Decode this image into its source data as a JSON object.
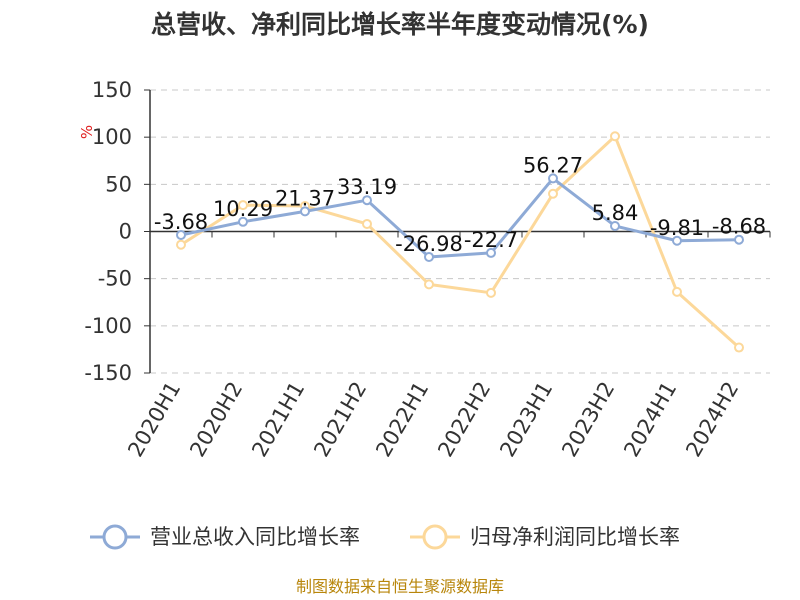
{
  "chart_data": {
    "type": "line",
    "title": "总营收、净利同比增长率半年度变动情况(%)",
    "unit": "%",
    "categories": [
      "2020H1",
      "2020H2",
      "2021H1",
      "2021H2",
      "2022H1",
      "2022H2",
      "2023H1",
      "2023H2",
      "2024H1",
      "2024H2"
    ],
    "ylim": [
      -150,
      150
    ],
    "yticks": [
      -150,
      -100,
      -50,
      0,
      50,
      100,
      150
    ],
    "grid": true,
    "legend_position": "bottom",
    "series": [
      {
        "name": "营业总收入同比增长率",
        "color": "#8eaad6",
        "values": [
          -3.68,
          10.29,
          21.37,
          33.19,
          -26.98,
          -22.7,
          56.27,
          5.84,
          -9.81,
          -8.68
        ],
        "labels": [
          "-3.68",
          "10.29",
          "21.37",
          "33.19",
          "-26.98",
          "-22.7",
          "56.27",
          "5.84",
          "-9.81",
          "-8.68"
        ]
      },
      {
        "name": "归母净利润同比增长率",
        "color": "#fcd89a",
        "values": [
          -14,
          28,
          27,
          8,
          -56,
          -65,
          40,
          101,
          -64,
          -123
        ]
      }
    ]
  },
  "footer": {
    "source": "制图数据来自恒生聚源数据库"
  }
}
